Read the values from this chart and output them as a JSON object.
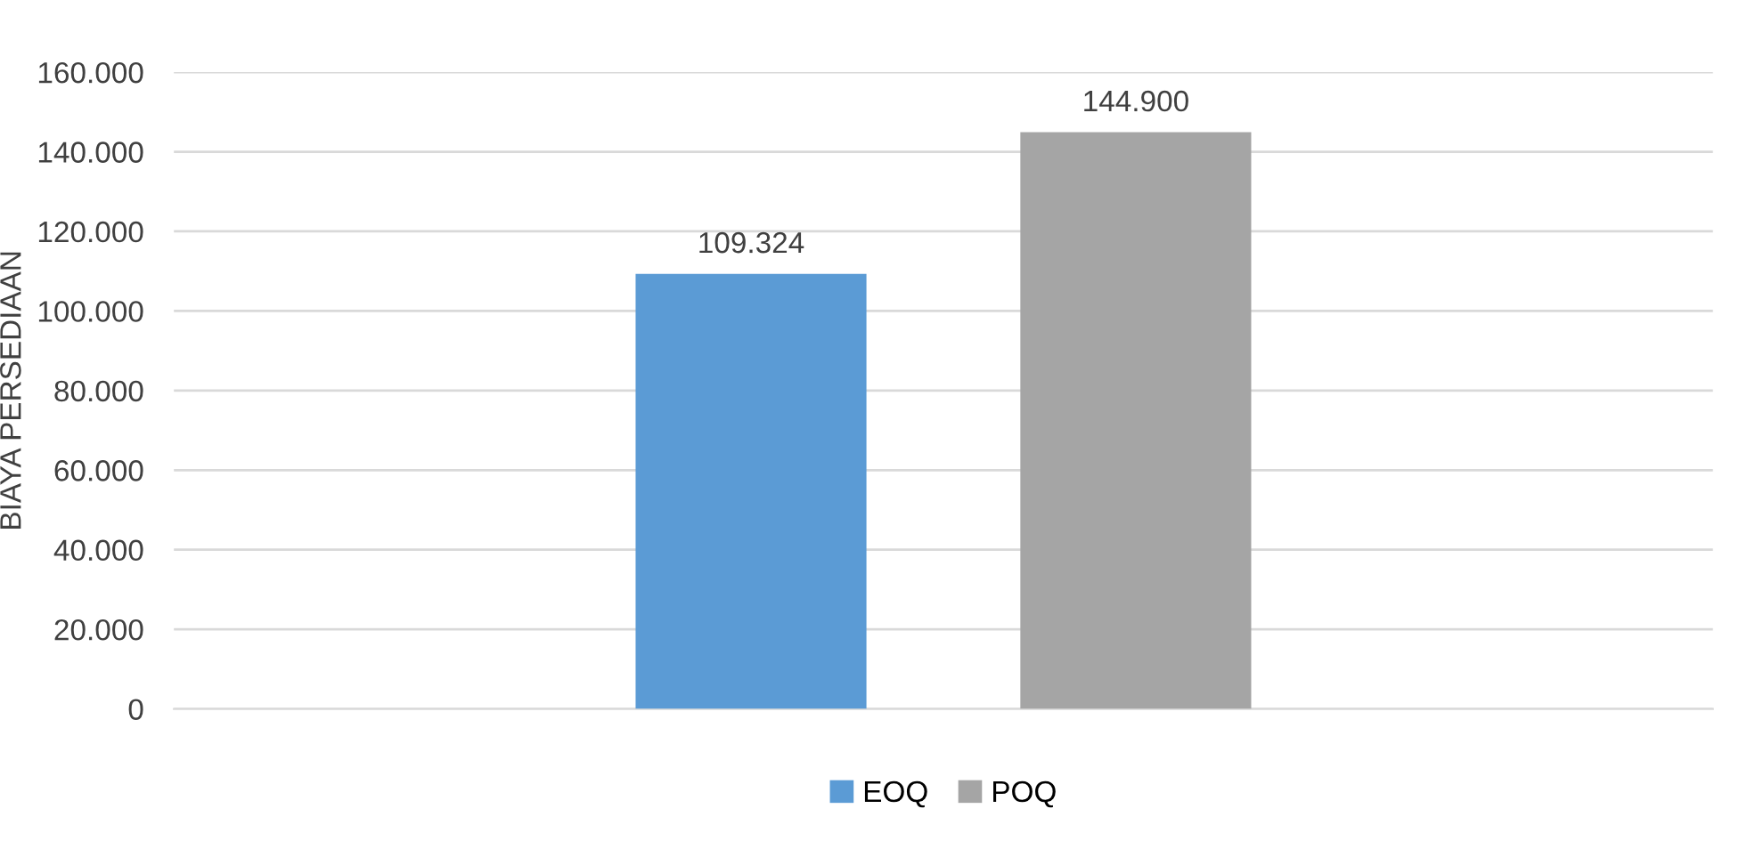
{
  "chart_data": {
    "type": "bar",
    "ylabel": "BIAYA PERSEDIAAN",
    "categories": [
      null
    ],
    "series": [
      {
        "name": "EOQ",
        "color": "#5b9bd5",
        "values": [
          109324
        ],
        "value_labels": [
          "109.324"
        ]
      },
      {
        "name": "POQ",
        "color": "#a5a5a5",
        "values": [
          144900
        ],
        "value_labels": [
          "144.900"
        ]
      }
    ],
    "ylim": [
      0,
      160000
    ],
    "yticks": [
      {
        "value": 0,
        "label": "0"
      },
      {
        "value": 20000,
        "label": "20.000"
      },
      {
        "value": 40000,
        "label": "40.000"
      },
      {
        "value": 60000,
        "label": "60.000"
      },
      {
        "value": 80000,
        "label": "80.000"
      },
      {
        "value": 100000,
        "label": "100.000"
      },
      {
        "value": 120000,
        "label": "120.000"
      },
      {
        "value": 140000,
        "label": "140.000"
      },
      {
        "value": 160000,
        "label": "160.000"
      }
    ],
    "grid": "y",
    "legend": "bottom"
  }
}
